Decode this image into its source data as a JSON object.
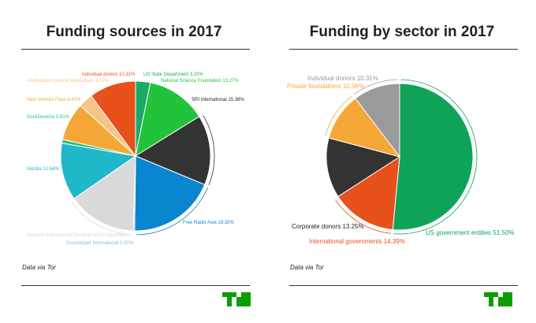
{
  "brand": {
    "logo_color": "#0a9e01"
  },
  "chart_data": [
    {
      "type": "pie",
      "title": "Funding sources in 2017",
      "source_note": "Data via Tor",
      "start_angle_deg": 0,
      "slices": [
        {
          "label": "US State Department 3.22%",
          "value": 3.22,
          "color": "#1aa866"
        },
        {
          "label": "National Science Foundation 13.27%",
          "value": 13.27,
          "color": "#22c33b"
        },
        {
          "label": "SRI International 15.38%",
          "value": 15.38,
          "color": "#333333"
        },
        {
          "label": "Free Radio Asia 19.32%",
          "value": 19.32,
          "color": "#0a86d0"
        },
        {
          "label": "Counterpart International 0.30%",
          "value": 0.3,
          "color": "#7fbde6"
        },
        {
          "label": "Swedish International Development Cooperation",
          "value": 15.15,
          "color": "#dadada"
        },
        {
          "label": "Mozilla 12.64%",
          "value": 12.64,
          "color": "#1fb8c8"
        },
        {
          "label": "DuckDuckGo 0.81%",
          "value": 0.81,
          "color": "#27c07a"
        },
        {
          "label": "New Venture Fund 8.41%",
          "value": 8.41,
          "color": "#f4a736"
        },
        {
          "label": "Undisclosed private foundations 3.15%",
          "value": 3.15,
          "color": "#f7c487"
        },
        {
          "label": "Individual donors 10.31%",
          "value": 10.31,
          "color": "#e8501c"
        }
      ]
    },
    {
      "type": "pie",
      "title": "Funding by sector in 2017",
      "source_note": "Data via Tor",
      "start_angle_deg": 0,
      "slices": [
        {
          "label": "US government entities 51.50%",
          "value": 51.5,
          "color": "#0fa35a"
        },
        {
          "label": "International governments 14.39%",
          "value": 14.39,
          "color": "#e8501c"
        },
        {
          "label": "Corporate donors 13.25%",
          "value": 13.25,
          "color": "#333333"
        },
        {
          "label": "Private foundations 10.56%",
          "value": 10.56,
          "color": "#f4a736"
        },
        {
          "label": "Individual donors 10.31%",
          "value": 10.31,
          "color": "#9a9a9a"
        }
      ]
    }
  ]
}
